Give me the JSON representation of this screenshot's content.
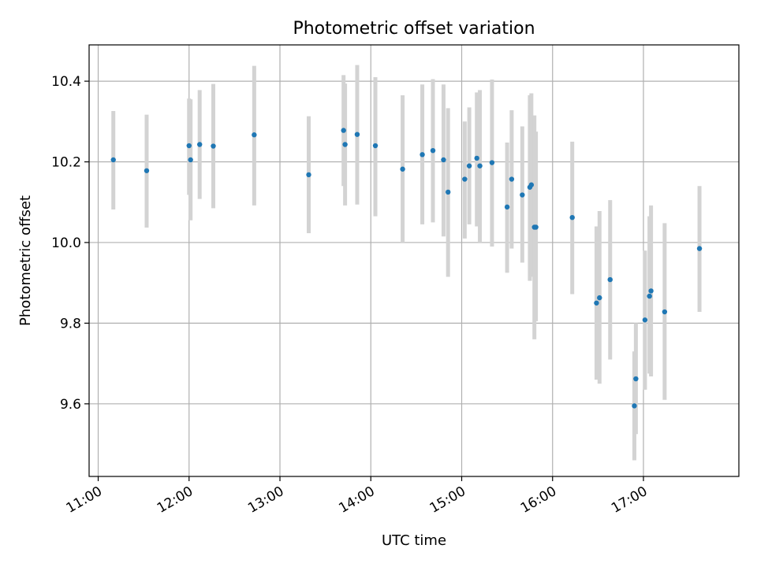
{
  "chart_data": {
    "type": "scatter",
    "title": "Photometric offset variation",
    "xlabel": "UTC time",
    "ylabel": "Photometric offset",
    "x_ticks": [
      "11:00",
      "12:00",
      "13:00",
      "14:00",
      "15:00",
      "16:00",
      "17:00"
    ],
    "x_tick_hours": [
      11,
      12,
      13,
      14,
      15,
      16,
      17
    ],
    "y_ticks": [
      "9.6",
      "9.8",
      "10.0",
      "10.2",
      "10.4"
    ],
    "y_tick_values": [
      9.6,
      9.8,
      10.0,
      10.2,
      10.4
    ],
    "xlim": [
      "10:54",
      "18:03"
    ],
    "ylim": [
      9.42,
      10.49
    ],
    "grid": true,
    "marker_color": "#1f77b4",
    "errorbar_color": "#d3d3d3",
    "series": [
      {
        "points": [
          {
            "x": "11:10",
            "y": 10.205,
            "lo": 10.082,
            "hi": 10.326
          },
          {
            "x": "11:32",
            "y": 10.178,
            "lo": 10.037,
            "hi": 10.317
          },
          {
            "x": "12:00",
            "y": 10.24,
            "lo": 10.118,
            "hi": 10.357
          },
          {
            "x": "12:01",
            "y": 10.205,
            "lo": 10.055,
            "hi": 10.355
          },
          {
            "x": "12:07",
            "y": 10.243,
            "lo": 10.108,
            "hi": 10.378
          },
          {
            "x": "12:16",
            "y": 10.239,
            "lo": 10.085,
            "hi": 10.393
          },
          {
            "x": "12:43",
            "y": 10.267,
            "lo": 10.092,
            "hi": 10.438
          },
          {
            "x": "13:19",
            "y": 10.168,
            "lo": 10.023,
            "hi": 10.313
          },
          {
            "x": "13:42",
            "y": 10.278,
            "lo": 10.14,
            "hi": 10.415
          },
          {
            "x": "13:43",
            "y": 10.243,
            "lo": 10.092,
            "hi": 10.394
          },
          {
            "x": "13:51",
            "y": 10.268,
            "lo": 10.094,
            "hi": 10.44
          },
          {
            "x": "14:03",
            "y": 10.24,
            "lo": 10.065,
            "hi": 10.41
          },
          {
            "x": "14:21",
            "y": 10.182,
            "lo": 10.0,
            "hi": 10.365
          },
          {
            "x": "14:34",
            "y": 10.218,
            "lo": 10.045,
            "hi": 10.392
          },
          {
            "x": "14:41",
            "y": 10.228,
            "lo": 10.05,
            "hi": 10.405
          },
          {
            "x": "14:48",
            "y": 10.205,
            "lo": 10.015,
            "hi": 10.392
          },
          {
            "x": "14:51",
            "y": 10.125,
            "lo": 9.915,
            "hi": 10.333
          },
          {
            "x": "15:02",
            "y": 10.157,
            "lo": 10.01,
            "hi": 10.3
          },
          {
            "x": "15:05",
            "y": 10.19,
            "lo": 10.045,
            "hi": 10.335
          },
          {
            "x": "15:10",
            "y": 10.209,
            "lo": 10.04,
            "hi": 10.372
          },
          {
            "x": "15:12",
            "y": 10.19,
            "lo": 10.0,
            "hi": 10.378
          },
          {
            "x": "15:20",
            "y": 10.198,
            "lo": 9.99,
            "hi": 10.404
          },
          {
            "x": "15:30",
            "y": 10.088,
            "lo": 9.925,
            "hi": 10.248
          },
          {
            "x": "15:33",
            "y": 10.157,
            "lo": 9.985,
            "hi": 10.328
          },
          {
            "x": "15:40",
            "y": 10.118,
            "lo": 9.95,
            "hi": 10.288
          },
          {
            "x": "15:45",
            "y": 10.137,
            "lo": 9.905,
            "hi": 10.365
          },
          {
            "x": "15:46",
            "y": 10.143,
            "lo": 9.915,
            "hi": 10.37
          },
          {
            "x": "15:48",
            "y": 10.038,
            "lo": 9.76,
            "hi": 10.315
          },
          {
            "x": "15:49",
            "y": 10.038,
            "lo": 9.805,
            "hi": 10.275
          },
          {
            "x": "16:13",
            "y": 10.062,
            "lo": 9.872,
            "hi": 10.25
          },
          {
            "x": "16:29",
            "y": 9.85,
            "lo": 9.66,
            "hi": 10.04
          },
          {
            "x": "16:31",
            "y": 9.863,
            "lo": 9.65,
            "hi": 10.078
          },
          {
            "x": "16:38",
            "y": 9.908,
            "lo": 9.71,
            "hi": 10.105
          },
          {
            "x": "16:54",
            "y": 9.595,
            "lo": 9.46,
            "hi": 9.73
          },
          {
            "x": "16:55",
            "y": 9.662,
            "lo": 9.525,
            "hi": 9.8
          },
          {
            "x": "17:01",
            "y": 9.808,
            "lo": 9.635,
            "hi": 9.98
          },
          {
            "x": "17:04",
            "y": 9.867,
            "lo": 9.675,
            "hi": 10.065
          },
          {
            "x": "17:05",
            "y": 9.88,
            "lo": 9.668,
            "hi": 10.092
          },
          {
            "x": "17:14",
            "y": 9.828,
            "lo": 9.61,
            "hi": 10.048
          },
          {
            "x": "17:37",
            "y": 9.985,
            "lo": 9.828,
            "hi": 10.14
          }
        ]
      }
    ]
  }
}
